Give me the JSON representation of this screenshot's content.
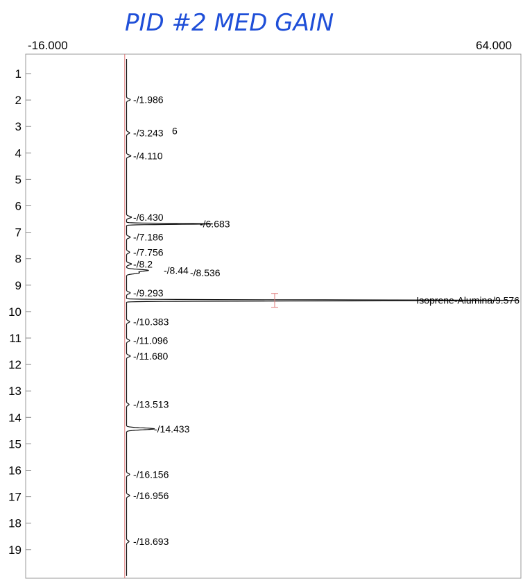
{
  "annotation": "PID #2 MED GAIN",
  "chart_data": {
    "type": "line",
    "orientation": "vertical",
    "title": "",
    "xlabel": "",
    "ylabel": "",
    "xlim": [
      -16.0,
      64.0
    ],
    "xlim_labels": [
      "-16.000",
      "64.000"
    ],
    "ylim": [
      0.4,
      20.0
    ],
    "yticks": [
      1,
      2,
      3,
      4,
      5,
      6,
      7,
      8,
      9,
      10,
      11,
      12,
      13,
      14,
      15,
      16,
      17,
      18,
      19
    ],
    "baseline_x": 0.3,
    "peak_labels": [
      {
        "text": "-/1.986",
        "rt": 1.986
      },
      {
        "text": "-/3.243",
        "rt": 3.243,
        "overlap": "6"
      },
      {
        "text": "-/4.110",
        "rt": 4.11
      },
      {
        "text": "-/6.430",
        "rt": 6.43
      },
      {
        "text": "-/6.683",
        "rt": 6.683
      },
      {
        "text": "-/7.186",
        "rt": 7.186
      },
      {
        "text": "-/7.756",
        "rt": 7.756
      },
      {
        "text": "-/8.2",
        "rt": 8.2
      },
      {
        "text": "-/8.44",
        "rt": 8.44
      },
      {
        "text": "-/8.536",
        "rt": 8.536
      },
      {
        "text": "-/9.293",
        "rt": 9.293
      },
      {
        "text": "-/10.383",
        "rt": 10.383
      },
      {
        "text": "-/11.096",
        "rt": 11.096
      },
      {
        "text": "-/11.680",
        "rt": 11.68
      },
      {
        "text": "-/13.513",
        "rt": 13.513
      },
      {
        "text": "-/14.433",
        "rt": 14.433
      },
      {
        "text": "-/16.156",
        "rt": 16.156
      },
      {
        "text": "-/16.956",
        "rt": 16.956
      },
      {
        "text": "-/18.693",
        "rt": 18.693
      },
      {
        "text": "Isoprene-Alumina/9.576",
        "rt": 9.576,
        "named": true
      }
    ],
    "peaks": [
      {
        "rt": 1.986,
        "height": 0.6
      },
      {
        "rt": 3.243,
        "height": 0.5
      },
      {
        "rt": 4.11,
        "height": 0.7
      },
      {
        "rt": 6.43,
        "height": 0.8
      },
      {
        "rt": 6.683,
        "height": 14.0
      },
      {
        "rt": 7.186,
        "height": 0.6
      },
      {
        "rt": 7.756,
        "height": 0.5
      },
      {
        "rt": 8.2,
        "height": 0.8
      },
      {
        "rt": 8.44,
        "height": 3.5
      },
      {
        "rt": 8.536,
        "height": 2.0
      },
      {
        "rt": 9.293,
        "height": 0.6
      },
      {
        "rt": 9.576,
        "height": 63.5
      },
      {
        "rt": 10.383,
        "height": 0.5
      },
      {
        "rt": 11.096,
        "height": 0.5
      },
      {
        "rt": 11.68,
        "height": 0.6
      },
      {
        "rt": 13.513,
        "height": 0.4
      },
      {
        "rt": 14.433,
        "height": 4.5
      },
      {
        "rt": 16.156,
        "height": 0.5
      },
      {
        "rt": 16.956,
        "height": 0.5
      },
      {
        "rt": 18.693,
        "height": 0.4
      }
    ]
  }
}
